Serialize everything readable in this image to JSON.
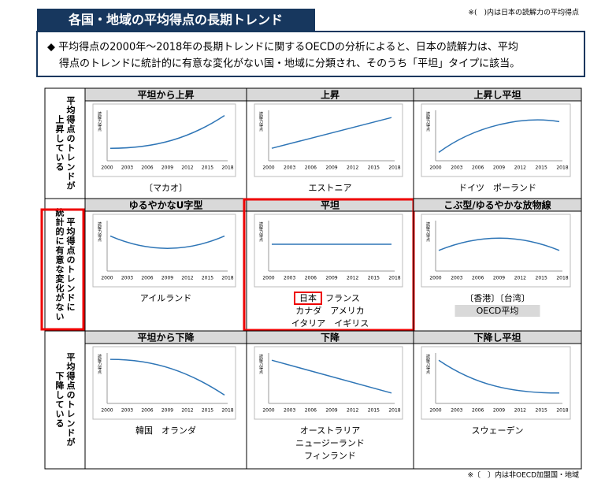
{
  "header": {
    "title": "各国・地域の平均得点の長期トレンド",
    "note": "※(　)内は日本の読解力の平均得点"
  },
  "summary": [
    "◆ 平均得点の2000年～2018年の長期トレンドに関するOECDの分析によると、日本の読解力は、平均",
    "得点のトレンドに統計的に有意な変化がない国・地域に分類され、そのうち「平坦」タイプに該当。"
  ],
  "chart_axis": {
    "y_label": "読解力得点",
    "x_ticks": [
      "2000",
      "2003",
      "2006",
      "2009",
      "2012",
      "2015",
      "2018"
    ]
  },
  "rows": [
    {
      "label": [
        "平均得点のトレンドが",
        "上昇している"
      ],
      "highlight": false,
      "cells": [
        {
          "title": "平坦から上昇",
          "highlight": false,
          "countries": [
            [
              {
                "text": "〔マカオ〕"
              }
            ]
          ]
        },
        {
          "title": "上昇",
          "highlight": false,
          "countries": [
            [
              {
                "text": "エストニア"
              }
            ]
          ]
        },
        {
          "title": "上昇し平坦",
          "highlight": false,
          "countries": [
            [
              {
                "text": "ドイツ　ポーランド"
              }
            ]
          ]
        }
      ]
    },
    {
      "label": [
        "平均得点のトレンドに",
        "統計的に有意な変化がない"
      ],
      "highlight": true,
      "cells": [
        {
          "title": "ゆるやかなU字型",
          "highlight": false,
          "countries": [
            [
              {
                "text": "アイルランド"
              }
            ]
          ]
        },
        {
          "title": "平坦",
          "highlight": true,
          "countries": [
            [
              {
                "text": "日本",
                "boxed": true
              },
              {
                "text": "フランス"
              }
            ],
            [
              {
                "text": "カナダ　アメリカ"
              }
            ],
            [
              {
                "text": "イタリア　イギリス"
              }
            ]
          ]
        },
        {
          "title": "こぶ型/ゆるやかな放物線",
          "highlight": false,
          "countries": [
            [
              {
                "text": "〔香港〕〔台湾〕"
              }
            ],
            [
              {
                "text": "OECD平均",
                "shaded": true
              }
            ]
          ]
        }
      ]
    },
    {
      "label": [
        "平均得点のトレンドが",
        "下降している"
      ],
      "highlight": false,
      "cells": [
        {
          "title": "平坦から下降",
          "highlight": false,
          "countries": [
            [
              {
                "text": "韓国　オランダ"
              }
            ]
          ]
        },
        {
          "title": "下降",
          "highlight": false,
          "countries": [
            [
              {
                "text": "オーストラリア"
              }
            ],
            [
              {
                "text": "ニュージーランド"
              }
            ],
            [
              {
                "text": "フィンランド"
              }
            ]
          ]
        },
        {
          "title": "下降し平坦",
          "highlight": false,
          "countries": [
            [
              {
                "text": "スウェーデン"
              }
            ]
          ]
        }
      ]
    }
  ],
  "footnote": "※〔　〕内は非OECD加盟国・地域"
}
